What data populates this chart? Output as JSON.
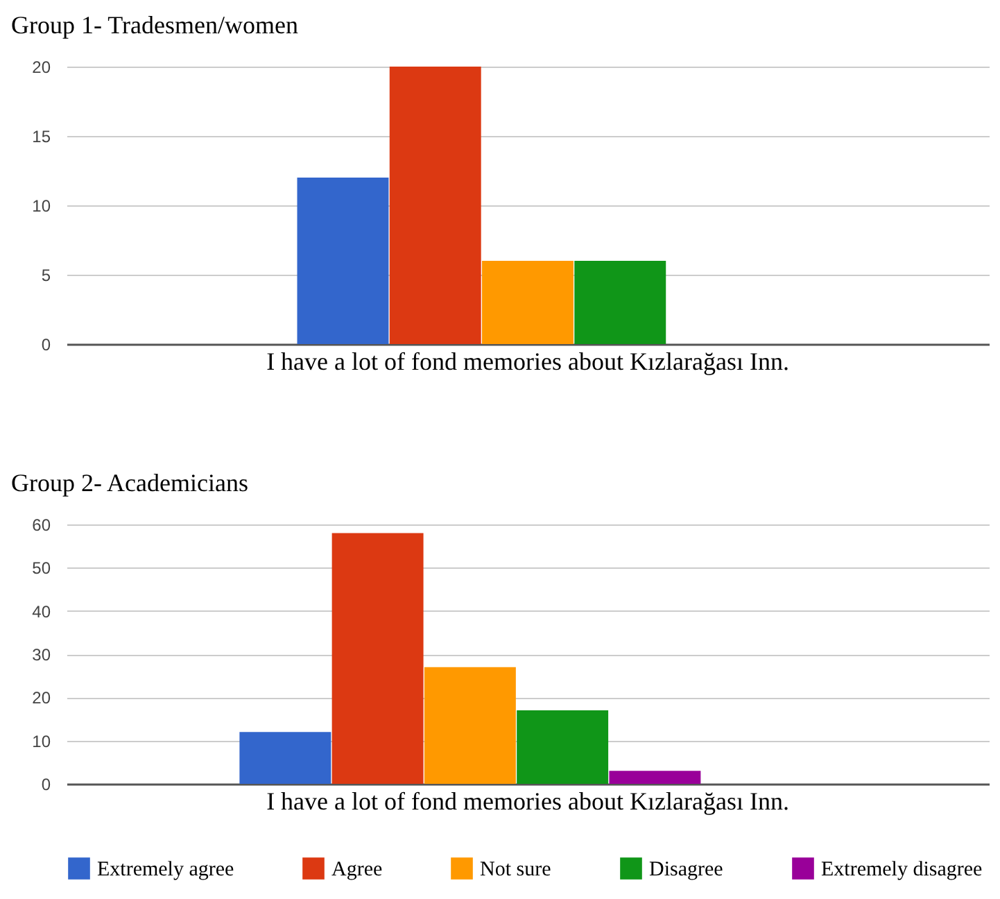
{
  "chart_data": [
    {
      "type": "bar",
      "title": "Group 1- Tradesmen/women",
      "categories": [
        "I have a lot of fond memories about Kızlarağası Inn."
      ],
      "series": [
        {
          "name": "Extremely agree",
          "color": "#3366cc",
          "values": [
            12
          ]
        },
        {
          "name": "Agree",
          "color": "#dc3912",
          "values": [
            20
          ]
        },
        {
          "name": "Not sure",
          "color": "#ff9900",
          "values": [
            6
          ]
        },
        {
          "name": "Disagree",
          "color": "#109618",
          "values": [
            6
          ]
        }
      ],
      "ylim": [
        0,
        20
      ],
      "yticks": [
        0,
        5,
        10,
        15,
        20
      ],
      "grid": "y",
      "legend": "bottom"
    },
    {
      "type": "bar",
      "title": "Group 2- Academicians",
      "categories": [
        "I have a lot of fond memories about Kızlarağası Inn."
      ],
      "series": [
        {
          "name": "Extremely agree",
          "color": "#3366cc",
          "values": [
            12
          ]
        },
        {
          "name": "Agree",
          "color": "#dc3912",
          "values": [
            58
          ]
        },
        {
          "name": "Not sure",
          "color": "#ff9900",
          "values": [
            27
          ]
        },
        {
          "name": "Disagree",
          "color": "#109618",
          "values": [
            17
          ]
        },
        {
          "name": "Extremely disagree",
          "color": "#990099",
          "values": [
            3
          ]
        }
      ],
      "ylim": [
        0,
        60
      ],
      "yticks": [
        0,
        10,
        20,
        30,
        40,
        50,
        60
      ],
      "grid": "y",
      "legend": "bottom"
    }
  ]
}
